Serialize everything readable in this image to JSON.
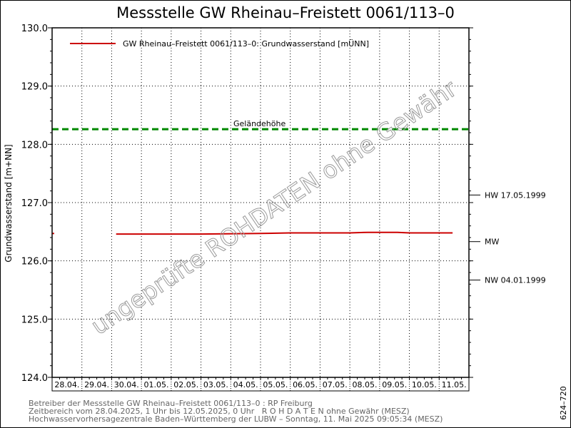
{
  "chart_data": {
    "type": "line",
    "title": "Messstelle GW Rheinau–Freistett 0061/113–0",
    "ylabel": "Grundwasserstand [m+NN]",
    "ylim": [
      124.0,
      130.0
    ],
    "yticks": [
      "124.0",
      "125.0",
      "126.0",
      "127.0",
      "128.0",
      "129.0",
      "130.0"
    ],
    "categories": [
      "28.04.",
      "29.04.",
      "30.04.",
      "01.05.",
      "02.05.",
      "03.05.",
      "04.05.",
      "05.05.",
      "06.05.",
      "07.05.",
      "08.05.",
      "09.05.",
      "10.05.",
      "11.05."
    ],
    "xlim_days": [
      0,
      14
    ],
    "series": [
      {
        "name": "GW Rheinau–Freistett 0061/113–0: Grundwasserstand  [mÜNN]",
        "color": "#cc0000",
        "segments": [
          [
            [
              0.0,
              126.47
            ],
            [
              0.07,
              126.47
            ]
          ],
          [
            [
              2.15,
              126.46
            ],
            [
              3.0,
              126.46
            ],
            [
              5.0,
              126.46
            ],
            [
              7.0,
              126.47
            ],
            [
              8.0,
              126.48
            ],
            [
              9.0,
              126.48
            ],
            [
              10.0,
              126.48
            ],
            [
              10.6,
              126.49
            ],
            [
              11.0,
              126.49
            ],
            [
              11.6,
              126.49
            ],
            [
              12.0,
              126.48
            ],
            [
              13.0,
              126.48
            ],
            [
              13.45,
              126.48
            ]
          ]
        ]
      }
    ],
    "reference_lines": [
      {
        "label": "Geländehöhe",
        "value": 128.26,
        "color": "#008800",
        "style": "dashed"
      }
    ],
    "right_markers": [
      {
        "label": "HW 17.05.1999",
        "value": 127.13
      },
      {
        "label": "MW",
        "value": 126.33
      },
      {
        "label": "NW 04.01.1999",
        "value": 125.67
      }
    ],
    "legend_position": "top-left",
    "grid": true,
    "watermark": "ungeprüfte ROHDATEN ohne Gewähr"
  },
  "footer": {
    "line1": "Betreiber der Messstelle GW Rheinau–Freistett 0061/113–0 : RP Freiburg",
    "line2": "Zeitbereich vom 28.04.2025, 1 Uhr bis 12.05.2025, 0 Uhr   R O H D A T E N ohne Gewähr (MESZ)",
    "line3": "Hochwasservorhersagezentrale Baden–Württemberg der LUBW – Sonntag, 11. Mai 2025 09:05:34 (MESZ)",
    "side_code": "624–720"
  }
}
